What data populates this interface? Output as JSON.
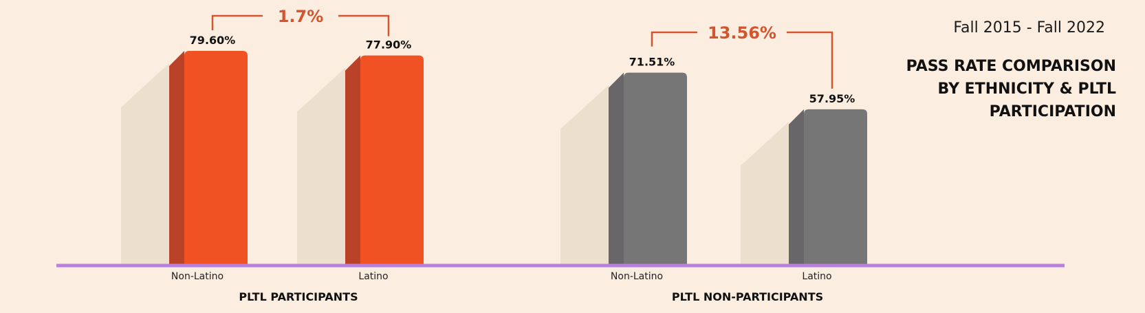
{
  "header": {
    "period": "Fall 2015 - Fall 2022",
    "title_lines": [
      "PASS RATE COMPARISON",
      "BY ETHNICITY & PLTL",
      "PARTICIPATION"
    ]
  },
  "colors": {
    "participants_bar": "#f05224",
    "participants_bar_side": "#b94228",
    "non_participants_bar": "#767676",
    "non_participants_bar_side": "#69666a",
    "shadow": "#ecdfcd",
    "baseline": "#b880dc",
    "gap_annotation": "#d4542e",
    "background": "#fbeee0"
  },
  "chart_data": {
    "type": "bar",
    "title": "PASS RATE COMPARISON BY ETHNICITY & PLTL PARTICIPATION",
    "subtitle": "Fall 2015 - Fall 2022",
    "ylim": [
      0,
      100
    ],
    "grid": false,
    "groups": [
      {
        "name": "PLTL PARTICIPANTS",
        "categories": [
          "Non-Latino",
          "Latino"
        ],
        "values": [
          79.6,
          77.9
        ],
        "value_labels": [
          "79.60%",
          "77.90%"
        ],
        "gap_label": "1.7%"
      },
      {
        "name": "PLTL NON-PARTICIPANTS",
        "categories": [
          "Non-Latino",
          "Latino"
        ],
        "values": [
          71.51,
          57.95
        ],
        "value_labels": [
          "71.51%",
          "57.95%"
        ],
        "gap_label": "13.56%"
      }
    ]
  }
}
